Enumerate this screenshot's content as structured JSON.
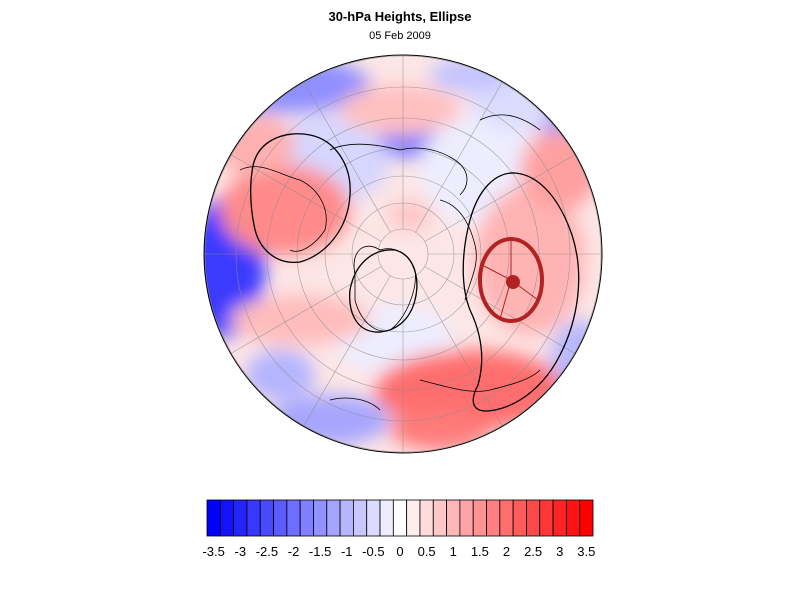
{
  "title": "30-hPa Heights, Ellipse",
  "subtitle": "05 Feb 2009",
  "map": {
    "projection": "north polar stereographic",
    "field": "30-hPa height anomaly",
    "overlay": "ellipse"
  },
  "colorbar": {
    "min": -3.5,
    "max": 3.5,
    "step": 0.25,
    "negative_color": "#0000ff",
    "neutral_color": "#ffffff",
    "positive_color": "#ff0000",
    "tick_labels": [
      "-3.5",
      "-3",
      "-2.5",
      "-2",
      "-1.5",
      "-1",
      "-0.5",
      "0",
      "0.5",
      "1",
      "1.5",
      "2",
      "2.5",
      "3",
      "3.5"
    ]
  },
  "colors": {
    "ellipse": "#b22222",
    "contour": "#000000",
    "coastline": "#000000",
    "grid": "#999999"
  }
}
